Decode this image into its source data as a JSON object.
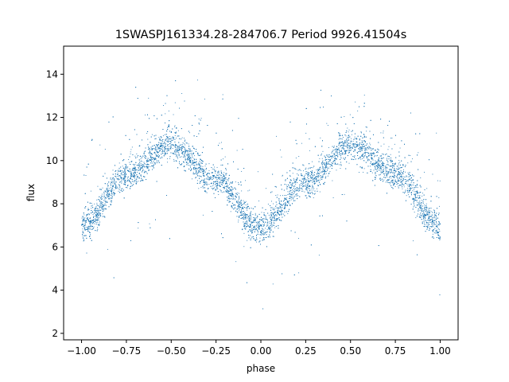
{
  "chart_data": {
    "type": "scatter",
    "title": "1SWASPJ161334.28-284706.7 Period 9926.41504s",
    "xlabel": "phase",
    "ylabel": "flux",
    "xlim": [
      -1.1,
      1.1
    ],
    "ylim": [
      1.7,
      15.3
    ],
    "xticks": [
      -1.0,
      -0.75,
      -0.5,
      -0.25,
      0.0,
      0.25,
      0.5,
      0.75,
      1.0
    ],
    "xtick_labels": [
      "−1.00",
      "−0.75",
      "−0.50",
      "−0.25",
      "0.00",
      "0.25",
      "0.50",
      "0.75",
      "1.00"
    ],
    "yticks": [
      2,
      4,
      6,
      8,
      10,
      12,
      14
    ],
    "ytick_labels": [
      "2",
      "4",
      "6",
      "8",
      "10",
      "12",
      "14"
    ],
    "grid": false,
    "marker_color": "#1f77b4",
    "trend": {
      "description_points": [
        {
          "x": -1.0,
          "y": 6.9
        },
        {
          "x": -0.75,
          "y": 9.3
        },
        {
          "x": -0.5,
          "y": 10.7
        },
        {
          "x": -0.25,
          "y": 9.1
        },
        {
          "x": 0.0,
          "y": 6.8
        },
        {
          "x": 0.25,
          "y": 9.0
        },
        {
          "x": 0.5,
          "y": 10.7
        },
        {
          "x": 0.75,
          "y": 9.4
        },
        {
          "x": 1.0,
          "y": 6.9
        }
      ],
      "scatter_sd": 0.35,
      "outlier_range": [
        2.2,
        14.6
      ],
      "n_points": 9000
    }
  }
}
